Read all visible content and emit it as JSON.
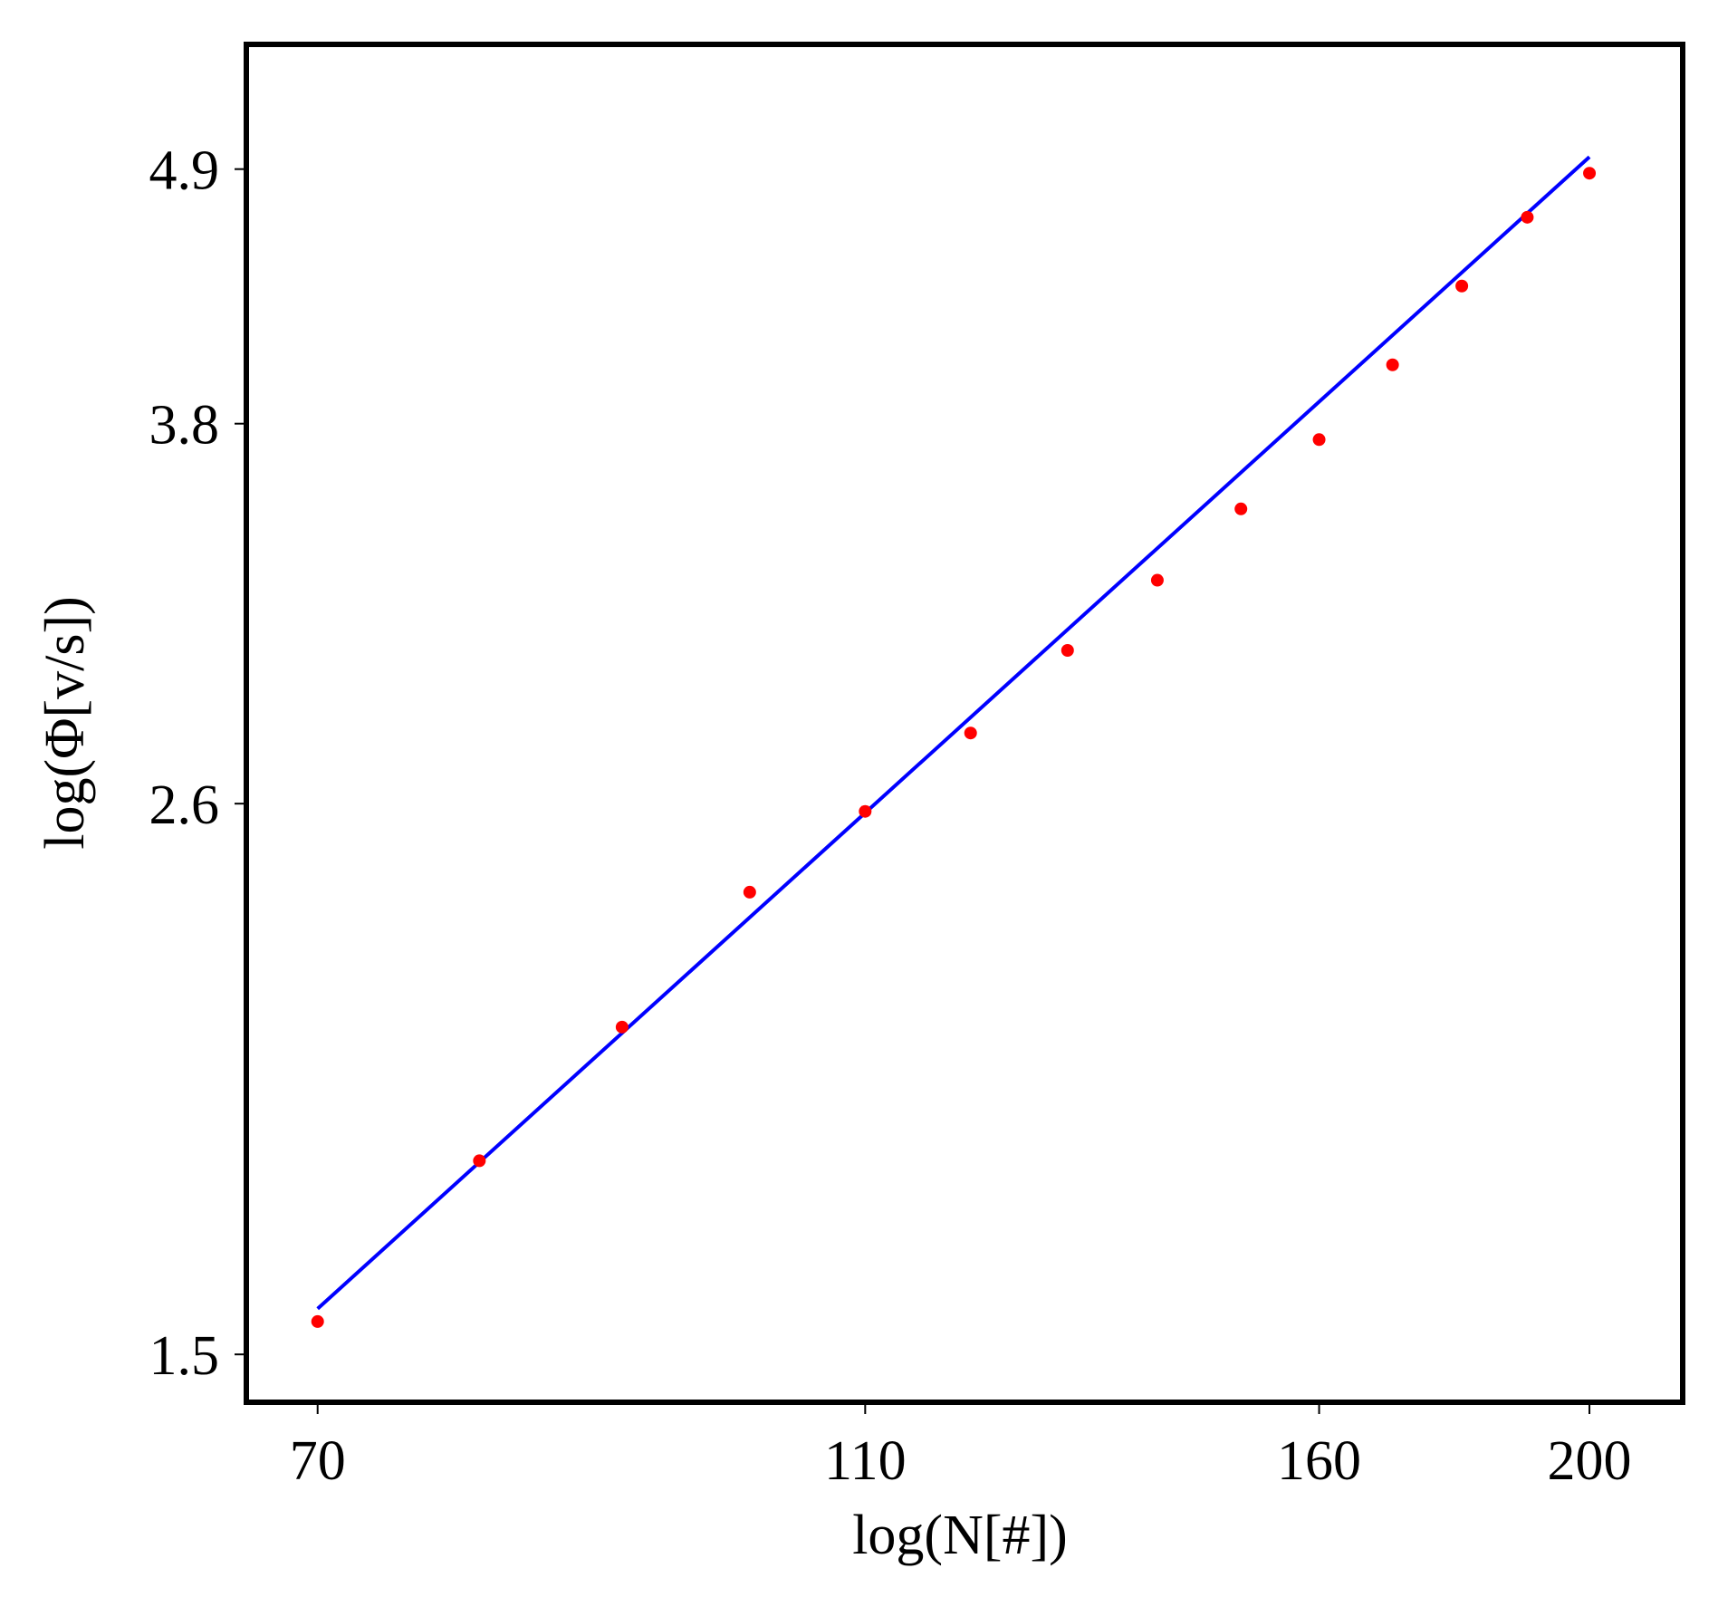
{
  "chart_data": {
    "type": "scatter",
    "xlabel": "log(N[#])",
    "ylabel": "log(Φ[v/s])",
    "x_scale": "log",
    "y_scale": "log",
    "xlim": [
      66,
      216
    ],
    "ylim": [
      1.43,
      5.55
    ],
    "x_ticks": [
      {
        "value": 70,
        "label": "70"
      },
      {
        "value": 110,
        "label": "110"
      },
      {
        "value": 160,
        "label": "160"
      },
      {
        "value": 200,
        "label": "200"
      }
    ],
    "y_ticks": [
      {
        "value": 1.5,
        "label": "1.5"
      },
      {
        "value": 2.6,
        "label": "2.6"
      },
      {
        "value": 3.8,
        "label": "3.8"
      },
      {
        "value": 4.9,
        "label": "4.9"
      }
    ],
    "grid": false,
    "legend": "none",
    "series": [
      {
        "kind": "points",
        "color": "#ff0000",
        "points": [
          {
            "x": 70,
            "y": 1.55
          },
          {
            "x": 80,
            "y": 1.82
          },
          {
            "x": 90,
            "y": 2.08
          },
          {
            "x": 100,
            "y": 2.38
          },
          {
            "x": 110,
            "y": 2.58
          },
          {
            "x": 120,
            "y": 2.79
          },
          {
            "x": 130,
            "y": 3.03
          },
          {
            "x": 140,
            "y": 3.25
          },
          {
            "x": 150,
            "y": 3.49
          },
          {
            "x": 160,
            "y": 3.74
          },
          {
            "x": 170,
            "y": 4.03
          },
          {
            "x": 180,
            "y": 4.36
          },
          {
            "x": 190,
            "y": 4.67
          },
          {
            "x": 200,
            "y": 4.88
          }
        ]
      },
      {
        "kind": "fit-line",
        "color": "#0000ff",
        "points": [
          {
            "x": 70,
            "y": 1.57
          },
          {
            "x": 200,
            "y": 4.96
          }
        ]
      }
    ]
  }
}
